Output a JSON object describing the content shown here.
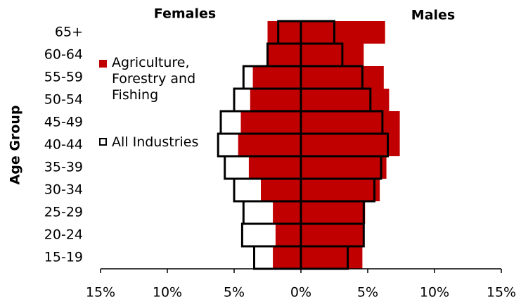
{
  "chart_data": {
    "type": "pyramid",
    "left_label": "Females",
    "right_label": "Males",
    "y_label": "Age Group",
    "categories": [
      "65+",
      "60-64",
      "55-59",
      "50-54",
      "45-49",
      "40-44",
      "35-39",
      "30-34",
      "25-29",
      "20-24",
      "15-19"
    ],
    "series": [
      {
        "name": "Agriculture, Forestry and Fishing",
        "color": "#c00000",
        "style": "filled",
        "females": [
          2.5,
          2.5,
          3.6,
          3.8,
          4.5,
          4.7,
          3.9,
          3.0,
          2.1,
          1.9,
          2.1
        ],
        "males": [
          6.3,
          4.7,
          6.2,
          6.6,
          7.4,
          7.4,
          6.4,
          5.9,
          4.8,
          4.7,
          4.6
        ]
      },
      {
        "name": "All Industries",
        "color": "#000000",
        "style": "outline",
        "females": [
          1.7,
          2.5,
          4.3,
          5.0,
          6.0,
          6.2,
          5.7,
          5.0,
          4.3,
          4.4,
          3.5
        ],
        "males": [
          2.5,
          3.1,
          4.6,
          5.2,
          6.1,
          6.5,
          6.0,
          5.5,
          4.7,
          4.7,
          3.5
        ]
      }
    ],
    "xlim": [
      -15,
      15
    ],
    "xticks": [
      {
        "value": -15,
        "label": "15%"
      },
      {
        "value": -10,
        "label": "10%"
      },
      {
        "value": -5,
        "label": "5%"
      },
      {
        "value": 0,
        "label": "0%"
      },
      {
        "value": 5,
        "label": "5%"
      },
      {
        "value": 10,
        "label": "10%"
      },
      {
        "value": 15,
        "label": "15%"
      }
    ]
  }
}
